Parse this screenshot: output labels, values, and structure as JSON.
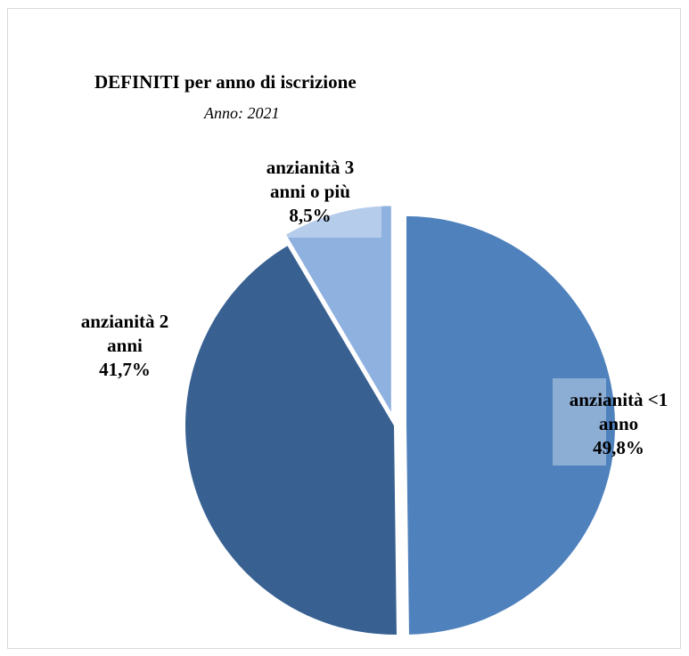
{
  "chart_data": {
    "type": "pie",
    "title": "DEFINITI per anno di iscrizione",
    "subtitle": "Anno: 2021",
    "slices": [
      {
        "label": "anzianità <1 anno",
        "value": 49.8,
        "value_label": "49,8%",
        "color": "#4f81bd",
        "exploded": true
      },
      {
        "label": "anzianità 2 anni",
        "value": 41.7,
        "value_label": "41,7%",
        "color": "#386192",
        "exploded": false
      },
      {
        "label": "anzianità 3 anni o più",
        "value": 8.5,
        "value_label": "8,5%",
        "color": "#8fb1e0",
        "exploded": true
      }
    ],
    "legend": "none"
  }
}
